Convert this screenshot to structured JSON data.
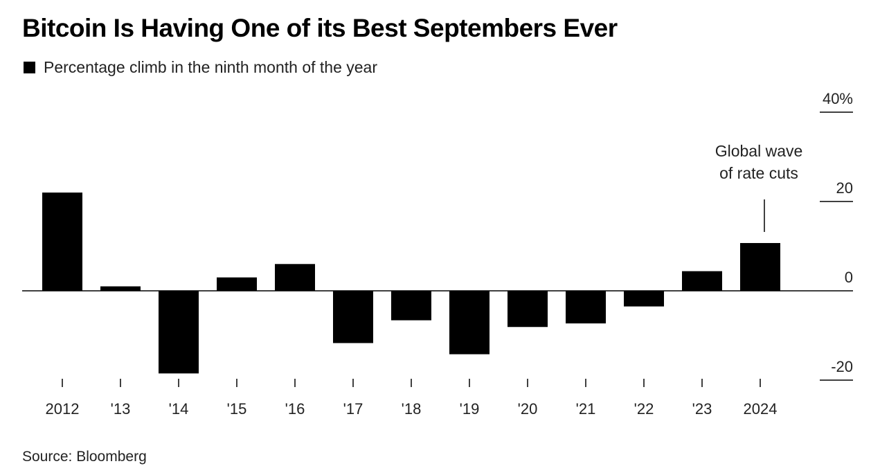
{
  "header": {
    "title": "Bitcoin Is Having One of its Best Septembers Ever"
  },
  "legend": {
    "label": "Percentage climb in the ninth month of the year",
    "color": "#000000"
  },
  "footer": {
    "source": "Source: Bloomberg"
  },
  "chart_data": {
    "type": "bar",
    "categories": [
      "2012",
      "'13",
      "'14",
      "'15",
      "'16",
      "'17",
      "'18",
      "'19",
      "'20",
      "'21",
      "'22",
      "'23",
      "2024"
    ],
    "values": [
      22,
      1,
      -18.5,
      3,
      6,
      -11.7,
      -6.6,
      -14.2,
      -8.1,
      -7.3,
      -3.5,
      4.4,
      10.7
    ],
    "ylim": [
      -20,
      40
    ],
    "yticks": [
      -20,
      0,
      20,
      40
    ],
    "ytick_labels": [
      "-20",
      "0",
      "20",
      "40%"
    ],
    "y_axis_position": "right",
    "bar_color": "#000000",
    "grid": false,
    "annotations": [
      {
        "category": "2024",
        "text_lines": [
          "Global wave",
          "of rate cuts"
        ]
      }
    ]
  }
}
